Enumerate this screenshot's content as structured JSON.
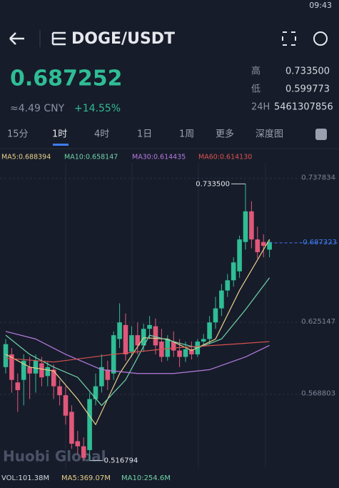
{
  "status_bar": {
    "time": "09:43"
  },
  "header": {
    "pair": "DOGE/USDT"
  },
  "price": {
    "last": "0.687252",
    "cny": "≈4.49 CNY",
    "change": "+14.55%",
    "stats": [
      {
        "label": "高",
        "value": "0.733500"
      },
      {
        "label": "低",
        "value": "0.599773"
      },
      {
        "label": "24H",
        "value": "5461307856"
      }
    ]
  },
  "tabs": [
    "15分",
    "1时",
    "4时",
    "1日",
    "1周",
    "更多",
    "深度图"
  ],
  "chart_data": {
    "type": "candlestick",
    "open": [
      0.59,
      0.6,
      0.578,
      0.58,
      0.59,
      0.585,
      0.593,
      0.583,
      0.588,
      0.575,
      0.568,
      0.555,
      0.532,
      0.528,
      0.525,
      0.565,
      0.575,
      0.588,
      0.585,
      0.612,
      0.623,
      0.602,
      0.615,
      0.607,
      0.62,
      0.622,
      0.61,
      0.598,
      0.61,
      0.603,
      0.598,
      0.604,
      0.6,
      0.61,
      0.612,
      0.625,
      0.636,
      0.65,
      0.658,
      0.665,
      0.688,
      0.712,
      0.69,
      0.688,
      0.682
    ],
    "high": [
      0.612,
      0.605,
      0.585,
      0.6,
      0.598,
      0.6,
      0.598,
      0.594,
      0.592,
      0.58,
      0.575,
      0.56,
      0.54,
      0.535,
      0.57,
      0.585,
      0.6,
      0.595,
      0.618,
      0.64,
      0.632,
      0.622,
      0.625,
      0.624,
      0.63,
      0.628,
      0.62,
      0.615,
      0.618,
      0.612,
      0.61,
      0.61,
      0.612,
      0.616,
      0.63,
      0.645,
      0.655,
      0.663,
      0.676,
      0.693,
      0.7335,
      0.72,
      0.7,
      0.694,
      0.69
    ],
    "low": [
      0.585,
      0.57,
      0.555,
      0.56,
      0.565,
      0.57,
      0.575,
      0.575,
      0.565,
      0.56,
      0.545,
      0.526,
      0.522,
      0.517,
      0.516794,
      0.56,
      0.57,
      0.572,
      0.58,
      0.605,
      0.595,
      0.598,
      0.6,
      0.602,
      0.612,
      0.6,
      0.594,
      0.595,
      0.598,
      0.59,
      0.594,
      0.596,
      0.598,
      0.606,
      0.608,
      0.62,
      0.63,
      0.645,
      0.653,
      0.66,
      0.682,
      0.683,
      0.675,
      0.676,
      0.676
    ],
    "close": [
      0.608,
      0.58,
      0.572,
      0.595,
      0.585,
      0.595,
      0.582,
      0.59,
      0.575,
      0.568,
      0.552,
      0.53,
      0.528,
      0.519,
      0.565,
      0.575,
      0.59,
      0.58,
      0.615,
      0.625,
      0.6,
      0.615,
      0.607,
      0.62,
      0.623,
      0.607,
      0.598,
      0.612,
      0.603,
      0.598,
      0.604,
      0.6,
      0.61,
      0.612,
      0.625,
      0.636,
      0.65,
      0.658,
      0.672,
      0.69,
      0.712,
      0.69,
      0.68,
      0.685,
      0.688
    ],
    "up_color": "#2fbd95",
    "down_color": "#e0577a",
    "ylim": [
      0.511,
      0.76
    ],
    "yticks": [
      0.737834,
      0.625147,
      0.568803
    ],
    "ma_lines": [
      {
        "label": "MA5:0.688394",
        "color": "#e8d08a",
        "x": [
          0,
          4,
          8,
          12,
          15,
          19,
          23,
          27,
          31,
          35,
          39,
          44
        ],
        "values": [
          0.6,
          0.59,
          0.587,
          0.565,
          0.545,
          0.585,
          0.613,
          0.612,
          0.603,
          0.612,
          0.65,
          0.69
        ]
      },
      {
        "label": "MA10:0.658147",
        "color": "#6fd3a8",
        "x": [
          0,
          4,
          8,
          12,
          16,
          20,
          24,
          28,
          32,
          36,
          40,
          44
        ],
        "values": [
          0.615,
          0.6,
          0.59,
          0.582,
          0.56,
          0.58,
          0.615,
          0.61,
          0.605,
          0.612,
          0.635,
          0.66
        ]
      },
      {
        "label": "MA30:0.614435",
        "color": "#b57be0",
        "x": [
          0,
          5,
          10,
          16,
          22,
          28,
          34,
          40,
          44
        ],
        "values": [
          0.618,
          0.612,
          0.6,
          0.588,
          0.585,
          0.585,
          0.588,
          0.598,
          0.607
        ]
      },
      {
        "label": "MA60:0.614130",
        "color": "#d9534f",
        "x": [
          0,
          8,
          18,
          28,
          38,
          44
        ],
        "values": [
          0.597,
          0.594,
          0.6,
          0.605,
          0.608,
          0.61
        ]
      }
    ],
    "max_label": {
      "index": 40,
      "value": 0.7335,
      "label": "0.733500"
    },
    "min_label": {
      "index": 14,
      "value": 0.516794,
      "label": "0.516794"
    },
    "last_price": {
      "value": 0.687323,
      "label": "0.687323"
    },
    "watermark": "Huobi Global"
  },
  "footer": [
    "VOL:101.38M",
    "MA5:369.07M",
    "MA10:254.6M"
  ]
}
